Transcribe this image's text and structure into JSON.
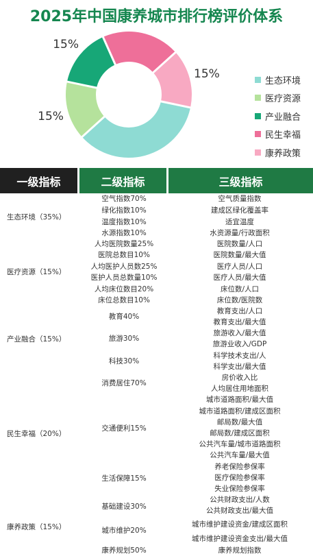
{
  "title": "2025年中国康养城市排行榜评价体系",
  "chart_data": {
    "type": "pie",
    "labels": [
      "生态环境",
      "医疗资源",
      "产业融合",
      "民生幸福",
      "康养政策"
    ],
    "values": [
      35,
      15,
      15,
      20,
      15
    ],
    "value_labels": [
      "35%",
      "15%",
      "15%",
      "20%",
      "15%"
    ],
    "colors": [
      "#8edbd3",
      "#b5e29c",
      "#17a777",
      "#ee6f99",
      "#f8a9c2"
    ],
    "legend_position": "right"
  },
  "table": {
    "headers": [
      "一级指标",
      "二级指标",
      "三级指标"
    ],
    "level1": [
      "生态环境（35%）",
      "医疗资源（15%）",
      "产业融合（15%）",
      "民生幸福（20%）",
      "康养政策（15%）"
    ],
    "level2": [
      "空气指数70%",
      "绿化指数10%",
      "温度指数10%",
      "水源指数10%",
      "人均医院数量25%",
      "医院总数目10%",
      "人均医护人员数25%",
      "医护人员总数量10%",
      "人均床位数目20%",
      "床位总数目10%",
      "教育40%",
      "旅游30%",
      "科技30%",
      "消费居住70%",
      "交通便利15%",
      "生活保障15%",
      "基础建设30%",
      "城市维护20%",
      "康养规划50%"
    ],
    "level3": [
      "空气质量指数",
      "建成区绿化覆盖率",
      "适宜温度",
      "水资源量/行政面积",
      "医院数量/人口",
      "医院数量/最大值",
      "医疗人员/人口",
      "医疗人员/最大值",
      "床位数/人口",
      "床位数/医院数",
      "教育支出/人口",
      "教育支出/最大值",
      "旅游收入/最大值",
      "旅游业收入/GDP",
      "科学技术支出/人",
      "科学支出/最大值",
      "房价收入比",
      "人均居住用地面积",
      "城市道路面积/最大值",
      "城市道路面积/建成区面积",
      "邮局数/最大值",
      "邮局数/建成区面积",
      "公共汽车量/城市道路面积",
      "公共汽车量/最大值",
      "养老保险参保率",
      "医疗保险参保率",
      "失业保险参保率",
      "公共财政支出/人数",
      "公共财政支出/最大值",
      "城市维护建设资金/建成区面积",
      "城市维护建设资金支出/最大值",
      "康养规划指数"
    ]
  }
}
